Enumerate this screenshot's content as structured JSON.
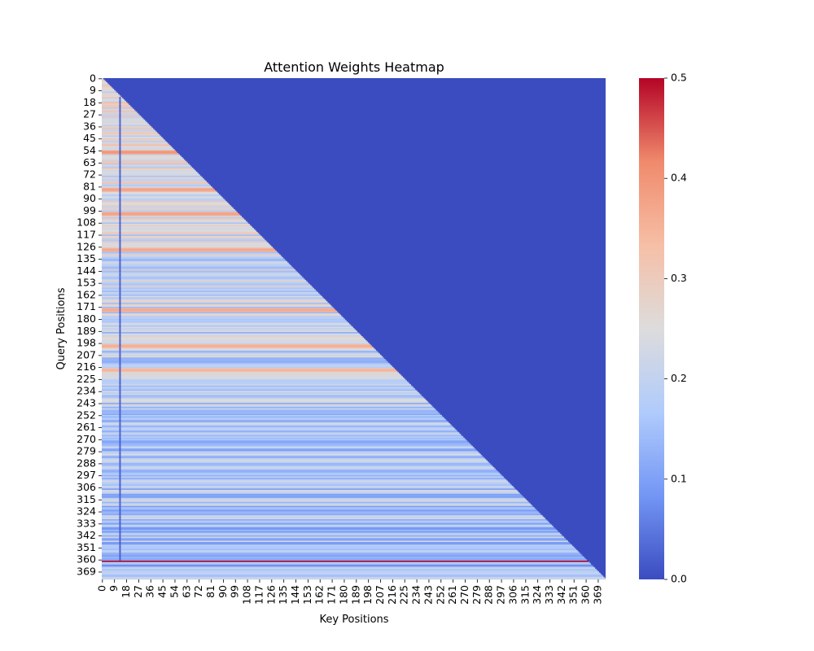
{
  "chart_data": {
    "type": "heatmap",
    "title": "Attention Weights Heatmap",
    "xlabel": "Key Positions",
    "ylabel": "Query Positions",
    "n_positions": 375,
    "mask": "causal (lower-triangular); cells above the diagonal are 0.0",
    "colormap": "coolwarm",
    "colormap_stops": [
      "#3b4cc0",
      "#7396f5",
      "#b0cbfc",
      "#dddcdc",
      "#f6bfa6",
      "#f08a6c",
      "#b40426"
    ],
    "x_tick_labels": [
      "0",
      "9",
      "18",
      "27",
      "36",
      "45",
      "54",
      "63",
      "72",
      "81",
      "90",
      "99",
      "108",
      "117",
      "126",
      "135",
      "144",
      "153",
      "162",
      "171",
      "180",
      "189",
      "198",
      "207",
      "216",
      "225",
      "234",
      "243",
      "252",
      "261",
      "270",
      "279",
      "288",
      "297",
      "306",
      "315",
      "324",
      "333",
      "342",
      "351",
      "360",
      "369"
    ],
    "y_tick_labels": [
      "0",
      "9",
      "18",
      "27",
      "36",
      "45",
      "54",
      "63",
      "72",
      "81",
      "90",
      "99",
      "108",
      "117",
      "126",
      "135",
      "144",
      "153",
      "162",
      "171",
      "180",
      "189",
      "198",
      "207",
      "216",
      "225",
      "234",
      "243",
      "252",
      "261",
      "270",
      "279",
      "288",
      "297",
      "306",
      "315",
      "324",
      "333",
      "342",
      "351",
      "360",
      "369"
    ],
    "tick_step": 9,
    "value_range": [
      0.0,
      0.5
    ],
    "colorbar_ticks": [
      "0.0",
      "0.1",
      "0.2",
      "0.3",
      "0.4",
      "0.5"
    ],
    "notable_rows": [
      {
        "query": 361,
        "value": 0.5,
        "note": "row near 361 attends ~0.5 to all previous keys"
      },
      {
        "query": 55,
        "value": 0.4
      },
      {
        "query": 83,
        "value": 0.38
      },
      {
        "query": 101,
        "value": 0.38
      },
      {
        "query": 128,
        "value": 0.37
      },
      {
        "query": 173,
        "value": 0.37
      },
      {
        "query": 200,
        "value": 0.36
      },
      {
        "query": 218,
        "value": 0.35
      }
    ],
    "notable_column": {
      "key": 13,
      "value": 0.02,
      "note": "low-attention column near key 13 for queries 14-360"
    }
  }
}
